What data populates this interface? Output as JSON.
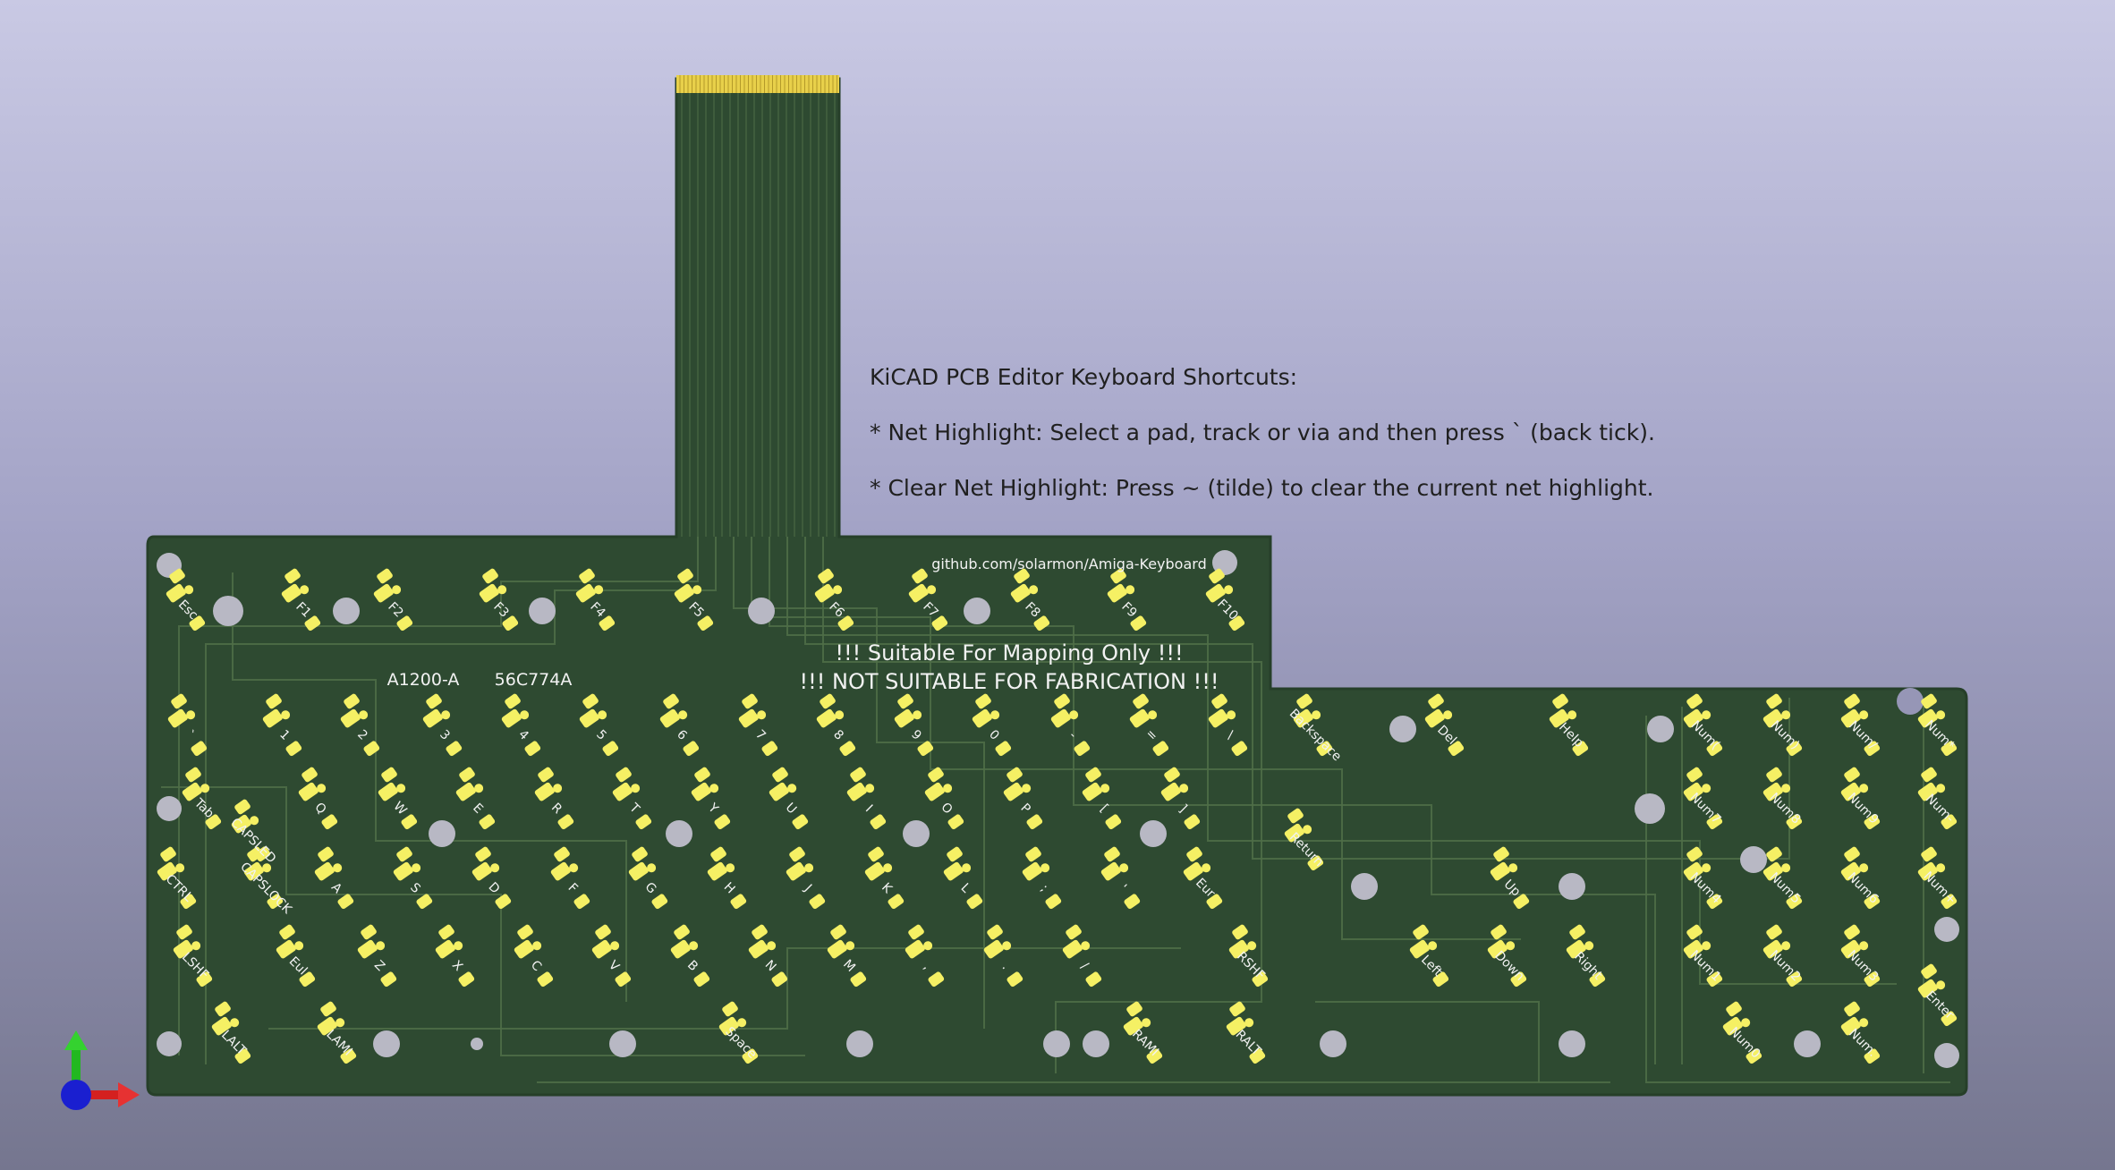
{
  "notes": {
    "title": "KiCAD PCB Editor Keyboard Shortcuts:",
    "line1": "* Net Highlight: Select a pad, track or via and then press ` (back tick).",
    "line2": "* Clear Net Highlight: Press ~ (tilde) to clear the current net highlight."
  },
  "pcb": {
    "url_text": "github.com/solarmon/Amiga-Keyboard",
    "model_text": "A1200-A",
    "part_text": "56C774A",
    "warning1": "!!! Suitable For Mapping Only !!!",
    "warning2": "!!! NOT SUITABLE FOR FABRICATION !!!",
    "colors": {
      "board": "#2e4a31",
      "board_edge": "#263f29",
      "trace": "#4f6e48",
      "silk": "#f2f2f2",
      "pad": "#f5f064",
      "gold": "#e8d04a",
      "hole": "#b8b8c4"
    }
  },
  "keys": [
    {
      "label": "Esc"
    },
    {
      "label": "F1"
    },
    {
      "label": "F2"
    },
    {
      "label": "F3"
    },
    {
      "label": "F4"
    },
    {
      "label": "F5"
    },
    {
      "label": "F6"
    },
    {
      "label": "F7"
    },
    {
      "label": "F8"
    },
    {
      "label": "F9"
    },
    {
      "label": "F10"
    },
    {
      "label": "`"
    },
    {
      "label": "1"
    },
    {
      "label": "2"
    },
    {
      "label": "3"
    },
    {
      "label": "4"
    },
    {
      "label": "5"
    },
    {
      "label": "6"
    },
    {
      "label": "7"
    },
    {
      "label": "8"
    },
    {
      "label": "9"
    },
    {
      "label": "0"
    },
    {
      "label": "-"
    },
    {
      "label": "="
    },
    {
      "label": "\\"
    },
    {
      "label": "Backspace"
    },
    {
      "label": "Del"
    },
    {
      "label": "Help"
    },
    {
      "label": "Num("
    },
    {
      "label": "Num)"
    },
    {
      "label": "Num/"
    },
    {
      "label": "Num*"
    },
    {
      "label": "Tab"
    },
    {
      "label": "Q"
    },
    {
      "label": "W"
    },
    {
      "label": "E"
    },
    {
      "label": "R"
    },
    {
      "label": "T"
    },
    {
      "label": "Y"
    },
    {
      "label": "U"
    },
    {
      "label": "I"
    },
    {
      "label": "O"
    },
    {
      "label": "P"
    },
    {
      "label": "["
    },
    {
      "label": "]"
    },
    {
      "label": "Return"
    },
    {
      "label": "Num7"
    },
    {
      "label": "Num8"
    },
    {
      "label": "Num9"
    },
    {
      "label": "Num-"
    },
    {
      "label": "CTRL"
    },
    {
      "label": "CAPSLOCK"
    },
    {
      "label": "CAPSLED"
    },
    {
      "label": "A"
    },
    {
      "label": "S"
    },
    {
      "label": "D"
    },
    {
      "label": "F"
    },
    {
      "label": "G"
    },
    {
      "label": "H"
    },
    {
      "label": "J"
    },
    {
      "label": "K"
    },
    {
      "label": "L"
    },
    {
      "label": ";"
    },
    {
      "label": "'"
    },
    {
      "label": "Eur"
    },
    {
      "label": "Up"
    },
    {
      "label": "Num4"
    },
    {
      "label": "Num5"
    },
    {
      "label": "Num6"
    },
    {
      "label": "Num+"
    },
    {
      "label": "LSHF"
    },
    {
      "label": "Eul"
    },
    {
      "label": "Z"
    },
    {
      "label": "X"
    },
    {
      "label": "C"
    },
    {
      "label": "V"
    },
    {
      "label": "B"
    },
    {
      "label": "N"
    },
    {
      "label": "M"
    },
    {
      "label": ","
    },
    {
      "label": "."
    },
    {
      "label": "/"
    },
    {
      "label": "RSHF"
    },
    {
      "label": "Left"
    },
    {
      "label": "Down"
    },
    {
      "label": "Right"
    },
    {
      "label": "Num1"
    },
    {
      "label": "Num2"
    },
    {
      "label": "Num3"
    },
    {
      "label": "Enter"
    },
    {
      "label": "LALT"
    },
    {
      "label": "LAMI"
    },
    {
      "label": "Space"
    },
    {
      "label": "RAMI"
    },
    {
      "label": "RALT"
    },
    {
      "label": "Num0"
    },
    {
      "label": "Num."
    }
  ]
}
